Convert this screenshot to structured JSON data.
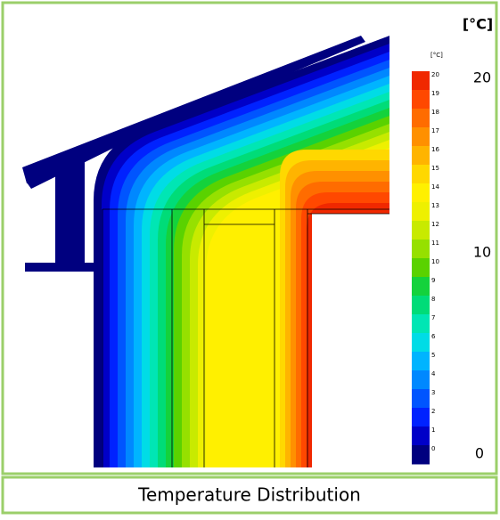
{
  "figure": {
    "unit_label": "[°C]",
    "scale_labels": [
      "20",
      "10",
      "0"
    ],
    "legend": {
      "unit": "[°C]",
      "ticks": [
        "20",
        "19",
        "18",
        "17",
        "16",
        "15",
        "14",
        "13",
        "12",
        "11",
        "10",
        "9",
        "8",
        "7",
        "6",
        "5",
        "4",
        "3",
        "2",
        "1",
        "0"
      ]
    }
  },
  "caption": "Temperature Distribution"
}
